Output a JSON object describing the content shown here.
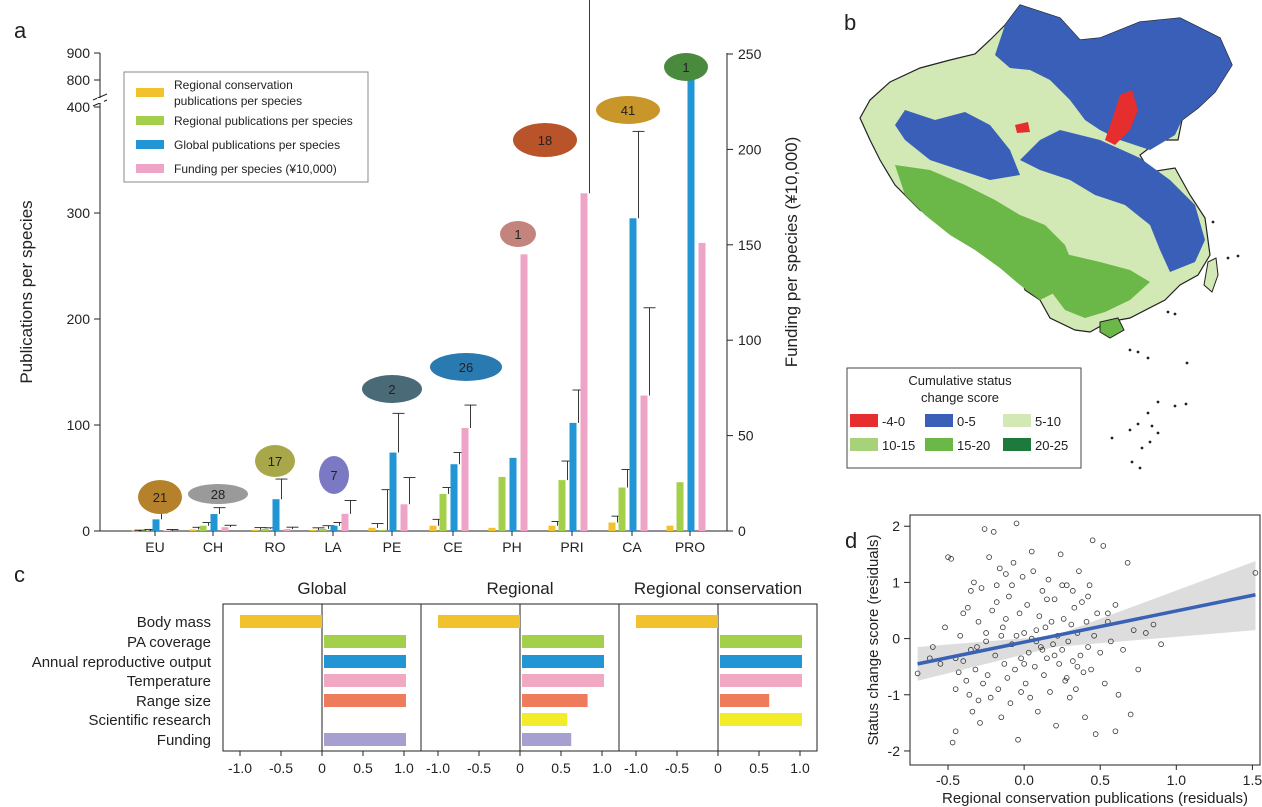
{
  "panels": {
    "a": "a",
    "b": "b",
    "c": "c",
    "d": "d"
  },
  "colors": {
    "regional_conservation": "#f2c12e",
    "regional": "#a4cf4a",
    "global": "#2296d4",
    "funding": "#eea4c6",
    "temperature": "#f1a8c2",
    "range_size": "#ee7c5c",
    "scientific_research": "#f2ec2a",
    "funding_c": "#a6a0d0",
    "map_land": "#d2e8b5",
    "map_blue": "#3a5fb8",
    "map_green": "#6bb748",
    "map_red": "#e62e2e",
    "regression": "#3a62b4",
    "ci_band": "#d9d9d9"
  },
  "chart_data": [
    {
      "panel": "a",
      "type": "bar",
      "categories": [
        "EU",
        "CH",
        "RO",
        "LA",
        "PE",
        "CE",
        "PH",
        "PRI",
        "CA",
        "PRO"
      ],
      "species_counts": [
        "21",
        "28",
        "17",
        "7",
        "2",
        "26",
        "1",
        "18",
        "41",
        "1"
      ],
      "ylabel": "Publications per species",
      "y2label": "Funding per species (¥10,000)",
      "ylim": [
        0,
        900
      ],
      "y_ticks": [
        "0",
        "100",
        "200",
        "300",
        "400",
        "800",
        "900"
      ],
      "y2lim": [
        0,
        250
      ],
      "y2_ticks": [
        "0",
        "50",
        "100",
        "150",
        "200",
        "250"
      ],
      "legend_position": "top-left",
      "series": [
        {
          "name": "Regional conservation publications per species",
          "axis": "left",
          "values": [
            0.3,
            1.5,
            1.2,
            1.0,
            3,
            5,
            3,
            5,
            8,
            5
          ],
          "error": [
            0.5,
            2,
            2,
            2,
            4,
            6,
            null,
            4,
            6,
            null
          ]
        },
        {
          "name": "Regional publications per species",
          "axis": "left",
          "values": [
            0.5,
            5,
            2,
            2,
            1,
            35,
            51,
            48,
            41,
            46
          ],
          "error": [
            1,
            3,
            1,
            3,
            38,
            6,
            null,
            18,
            17,
            null
          ]
        },
        {
          "name": "Global publications per species",
          "axis": "left",
          "values": [
            11,
            16,
            30,
            5,
            74,
            63,
            69,
            102,
            295,
            840
          ],
          "error": [
            6,
            6,
            19,
            3,
            37,
            11,
            null,
            31,
            82,
            null
          ]
        },
        {
          "name": "Funding per species (¥10,000)",
          "axis": "right",
          "values": [
            0.3,
            2,
            1,
            9,
            14,
            54,
            145,
            177,
            71,
            151
          ],
          "error": [
            0.5,
            1,
            1,
            7,
            14,
            12,
            null,
            254,
            46,
            null
          ]
        }
      ]
    },
    {
      "panel": "b",
      "type": "map",
      "legend_title": "Cumulative status change score",
      "legend_title_line1": "Cumulative status",
      "legend_title_line2": "change score",
      "legend": [
        {
          "label": "-4-0",
          "color": "#e62e2e"
        },
        {
          "label": "0-5",
          "color": "#3a5fb8"
        },
        {
          "label": "5-10",
          "color": "#d2e8b5"
        },
        {
          "label": "10-15",
          "color": "#a7d27a"
        },
        {
          "label": "15-20",
          "color": "#6bb748"
        },
        {
          "label": "20-25",
          "color": "#1e7a3c"
        }
      ]
    },
    {
      "panel": "c",
      "type": "bar",
      "orientation": "horizontal",
      "categories": [
        "Body mass",
        "PA coverage",
        "Annual reproductive output",
        "Temperature",
        "Range size",
        "Scientific research",
        "Funding"
      ],
      "xlim": [
        -1.0,
        1.0
      ],
      "x_ticks": [
        "-1.0",
        "-0.5",
        "0",
        "0.5",
        "1.0"
      ],
      "subpanels": [
        {
          "title": "Global",
          "values": [
            -1.0,
            1.0,
            1.0,
            1.0,
            1.0,
            null,
            1.0
          ]
        },
        {
          "title": "Regional",
          "values": [
            -1.0,
            1.0,
            1.0,
            1.0,
            0.8,
            0.55,
            0.6
          ]
        },
        {
          "title": "Regional conservation",
          "values": [
            -1.0,
            1.0,
            1.0,
            1.0,
            0.6,
            1.0,
            null
          ]
        }
      ]
    },
    {
      "panel": "d",
      "type": "scatter",
      "xlabel": "Regional conservation publications (residuals)",
      "ylabel": "Status change score (residuals)",
      "xlim": [
        -0.75,
        1.55
      ],
      "ylim": [
        -2.25,
        2.2
      ],
      "x_ticks": [
        "-0.5",
        "0.0",
        "0.5",
        "1.0",
        "1.5"
      ],
      "y_ticks": [
        "-2",
        "-1",
        "0",
        "1",
        "2"
      ],
      "regression": {
        "x": [
          -0.7,
          1.52
        ],
        "y": [
          -0.45,
          0.78
        ]
      },
      "ci_band": {
        "x": [
          -0.7,
          0.2,
          1.52
        ],
        "upper": [
          -0.15,
          0.05,
          1.38
        ],
        "lower": [
          -0.75,
          -0.15,
          0.15
        ]
      },
      "points": [
        [
          -0.7,
          -0.62
        ],
        [
          -0.62,
          -0.35
        ],
        [
          -0.55,
          -0.45
        ],
        [
          -0.52,
          0.2
        ],
        [
          -0.5,
          1.45
        ],
        [
          -0.48,
          1.42
        ],
        [
          -0.47,
          -1.85
        ],
        [
          -0.45,
          -1.65
        ],
        [
          -0.45,
          -0.9
        ],
        [
          -0.43,
          -0.6
        ],
        [
          -0.42,
          0.05
        ],
        [
          -0.4,
          -0.4
        ],
        [
          -0.38,
          -0.75
        ],
        [
          -0.37,
          0.55
        ],
        [
          -0.36,
          -1.0
        ],
        [
          -0.35,
          -0.2
        ],
        [
          -0.34,
          -1.3
        ],
        [
          -0.33,
          1.0
        ],
        [
          -0.32,
          -0.55
        ],
        [
          -0.31,
          -0.15
        ],
        [
          -0.3,
          0.3
        ],
        [
          -0.29,
          -1.5
        ],
        [
          -0.28,
          0.9
        ],
        [
          -0.27,
          -0.8
        ],
        [
          -0.26,
          1.95
        ],
        [
          -0.25,
          0.1
        ],
        [
          -0.24,
          -0.65
        ],
        [
          -0.23,
          1.45
        ],
        [
          -0.22,
          -1.05
        ],
        [
          -0.21,
          0.5
        ],
        [
          -0.2,
          1.9
        ],
        [
          -0.19,
          -0.3
        ],
        [
          -0.18,
          0.95
        ],
        [
          -0.17,
          -0.9
        ],
        [
          -0.16,
          1.25
        ],
        [
          -0.15,
          -1.4
        ],
        [
          -0.14,
          0.2
        ],
        [
          -0.13,
          -0.45
        ],
        [
          -0.12,
          1.15
        ],
        [
          -0.11,
          -0.7
        ],
        [
          -0.1,
          0.75
        ],
        [
          -0.09,
          -1.15
        ],
        [
          -0.08,
          -0.1
        ],
        [
          -0.07,
          1.35
        ],
        [
          -0.06,
          -0.55
        ],
        [
          -0.05,
          0.05
        ],
        [
          -0.04,
          -1.8
        ],
        [
          -0.03,
          0.45
        ],
        [
          -0.02,
          -0.35
        ],
        [
          -0.01,
          1.1
        ],
        [
          0.0,
          0.1
        ],
        [
          0.01,
          -0.8
        ],
        [
          0.02,
          0.6
        ],
        [
          0.03,
          -0.25
        ],
        [
          0.04,
          -1.05
        ],
        [
          0.05,
          0.0
        ],
        [
          0.06,
          1.2
        ],
        [
          0.07,
          -0.5
        ],
        [
          0.08,
          0.15
        ],
        [
          0.09,
          -1.3
        ],
        [
          0.1,
          0.4
        ],
        [
          0.11,
          -0.15
        ],
        [
          0.12,
          0.85
        ],
        [
          0.13,
          -0.65
        ],
        [
          0.14,
          0.2
        ],
        [
          0.15,
          -0.35
        ],
        [
          0.16,
          1.05
        ],
        [
          0.17,
          -0.95
        ],
        [
          0.18,
          0.3
        ],
        [
          0.19,
          -0.1
        ],
        [
          0.2,
          0.7
        ],
        [
          0.21,
          -1.55
        ],
        [
          0.22,
          0.05
        ],
        [
          0.23,
          -0.45
        ],
        [
          0.24,
          1.5
        ],
        [
          0.25,
          -0.2
        ],
        [
          0.26,
          0.35
        ],
        [
          0.27,
          -0.75
        ],
        [
          0.28,
          0.95
        ],
        [
          0.29,
          -0.05
        ],
        [
          0.3,
          -1.05
        ],
        [
          0.31,
          0.25
        ],
        [
          0.32,
          -0.4
        ],
        [
          0.33,
          0.55
        ],
        [
          0.34,
          -0.9
        ],
        [
          0.35,
          0.1
        ],
        [
          0.36,
          1.2
        ],
        [
          0.37,
          -0.3
        ],
        [
          0.38,
          0.65
        ],
        [
          0.39,
          -0.6
        ],
        [
          0.4,
          -1.4
        ],
        [
          0.41,
          0.3
        ],
        [
          0.42,
          -0.15
        ],
        [
          0.43,
          0.95
        ],
        [
          0.44,
          -0.55
        ],
        [
          0.45,
          1.75
        ],
        [
          0.46,
          0.05
        ],
        [
          0.47,
          -1.7
        ],
        [
          0.48,
          0.45
        ],
        [
          0.5,
          -0.25
        ],
        [
          0.52,
          1.65
        ],
        [
          0.53,
          -0.8
        ],
        [
          0.55,
          0.3
        ],
        [
          0.57,
          -0.05
        ],
        [
          0.6,
          0.6
        ],
        [
          0.62,
          -1.0
        ],
        [
          0.65,
          -0.2
        ],
        [
          0.68,
          1.35
        ],
        [
          0.7,
          -1.35
        ],
        [
          0.72,
          0.15
        ],
        [
          0.75,
          -0.55
        ],
        [
          0.8,
          0.1
        ],
        [
          0.85,
          0.25
        ],
        [
          0.9,
          -0.1
        ],
        [
          -0.35,
          0.85
        ],
        [
          -0.15,
          0.05
        ],
        [
          0.05,
          1.55
        ],
        [
          0.15,
          0.7
        ],
        [
          0.25,
          0.95
        ],
        [
          -0.05,
          2.05
        ],
        [
          -0.25,
          -0.05
        ],
        [
          0.35,
          -0.5
        ],
        [
          -0.45,
          -0.35
        ],
        [
          0.55,
          0.45
        ],
        [
          -0.6,
          -0.15
        ],
        [
          0.0,
          -0.45
        ],
        [
          0.12,
          -0.2
        ],
        [
          -0.12,
          0.35
        ],
        [
          1.52,
          1.17
        ],
        [
          -0.18,
          0.65
        ],
        [
          0.28,
          -0.7
        ],
        [
          0.42,
          0.75
        ],
        [
          -0.3,
          -1.1
        ],
        [
          0.08,
          -0.05
        ],
        [
          -0.08,
          0.95
        ],
        [
          0.6,
          -1.65
        ],
        [
          0.2,
          -0.3
        ],
        [
          -0.4,
          0.45
        ],
        [
          0.32,
          0.85
        ],
        [
          -0.02,
          -0.95
        ]
      ]
    }
  ]
}
